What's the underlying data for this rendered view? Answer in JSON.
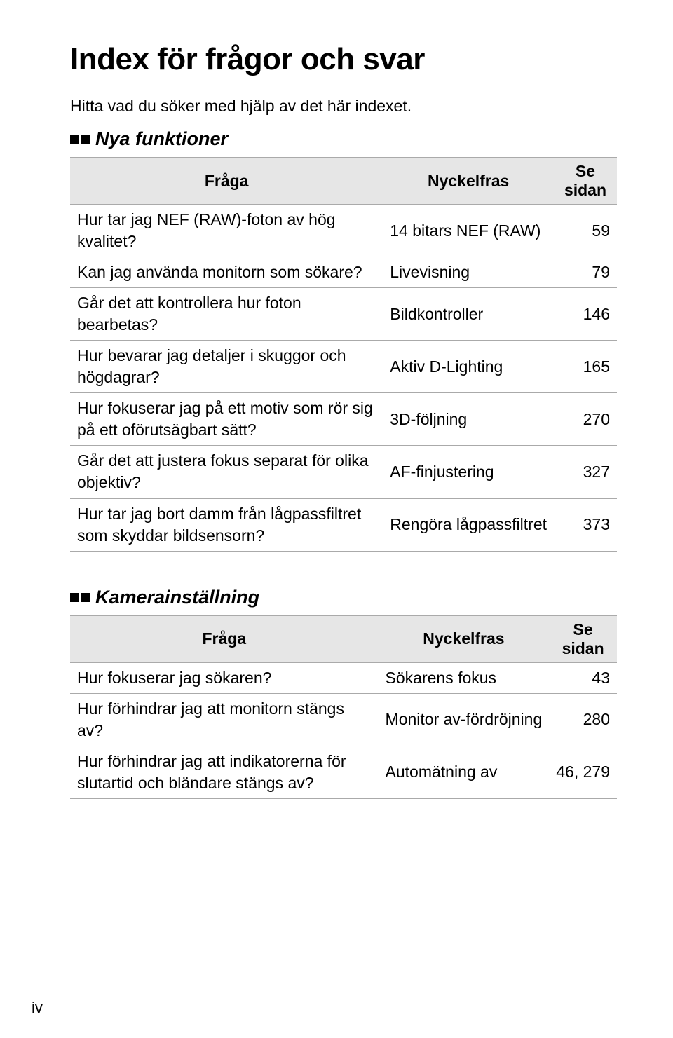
{
  "title": "Index för frågor och svar",
  "subtitle": "Hitta vad du söker med hjälp av det här indexet.",
  "columns": {
    "q": "Fråga",
    "kw": "Nyckelfras",
    "pg": "Se sidan"
  },
  "sections": [
    {
      "label": "Nya funktioner",
      "rows": [
        {
          "q": "Hur tar jag NEF (RAW)-foton av hög kvalitet?",
          "kw": "14 bitars NEF (RAW)",
          "pg": "59"
        },
        {
          "q": "Kan jag använda monitorn som sökare?",
          "kw": "Livevisning",
          "pg": "79"
        },
        {
          "q": "Går det att kontrollera hur foton bearbetas?",
          "kw": "Bildkontroller",
          "pg": "146"
        },
        {
          "q": "Hur bevarar jag detaljer i skuggor och högdagrar?",
          "kw": "Aktiv D-Lighting",
          "pg": "165"
        },
        {
          "q": "Hur fokuserar jag på ett motiv som rör sig på ett oförutsägbart sätt?",
          "kw": "3D-följning",
          "pg": "270"
        },
        {
          "q": "Går det att justera fokus separat för olika objektiv?",
          "kw": "AF-finjustering",
          "pg": "327"
        },
        {
          "q": "Hur tar jag bort damm från lågpassfiltret som skyddar bildsensorn?",
          "kw": "Rengöra lågpassfiltret",
          "pg": "373"
        }
      ]
    },
    {
      "label": "Kamerainställning",
      "rows": [
        {
          "q": "Hur fokuserar jag sökaren?",
          "kw": "Sökarens fokus",
          "pg": "43"
        },
        {
          "q": "Hur förhindrar jag att monitorn stängs av?",
          "kw": "Monitor av-fördröjning",
          "pg": "280"
        },
        {
          "q": "Hur förhindrar jag att indikatorerna för slutartid och bländare stängs av?",
          "kw": "Automätning av",
          "pg": "46, 279"
        }
      ]
    }
  ],
  "page_num": "iv",
  "colors": {
    "header_bg": "#e6e6e6",
    "border": "#aaaaaa",
    "text": "#000000",
    "bg": "#ffffff"
  }
}
